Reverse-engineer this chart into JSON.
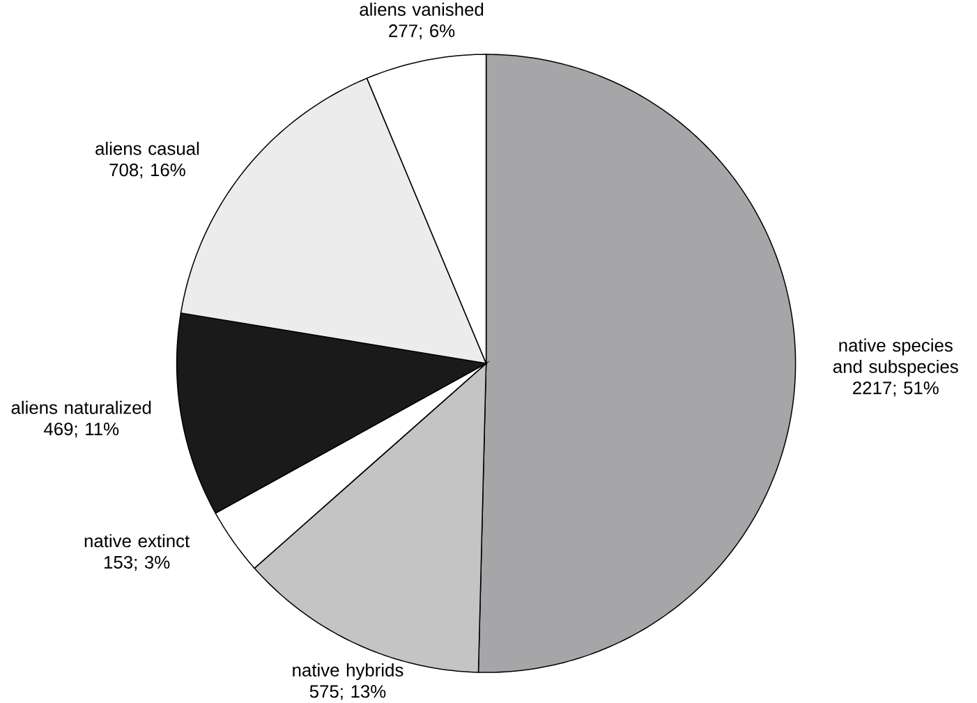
{
  "chart_data": {
    "type": "pie",
    "categories": [
      "native species and subspecies",
      "native hybrids",
      "native extinct",
      "aliens naturalized",
      "aliens casual",
      "aliens vanished"
    ],
    "values": [
      2217,
      575,
      153,
      469,
      708,
      277
    ],
    "value_labels": [
      "2217; 51%",
      "575; 13%",
      "153; 3%",
      "469; 11%",
      "708; 16%",
      "277; 6%"
    ],
    "colors": [
      "#a6a6a8",
      "#c4c4c4",
      "#ffffff",
      "#1a1a1a",
      "#ececec",
      "#ffffff"
    ]
  }
}
